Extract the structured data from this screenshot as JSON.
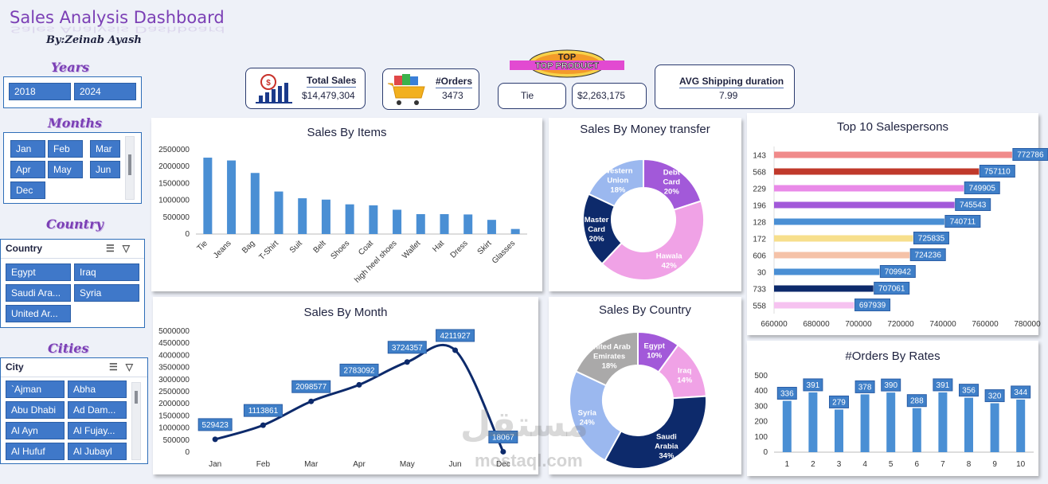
{
  "header": {
    "title": "Sales Analysis Dashboard",
    "author": "By:Zeinab Ayash"
  },
  "filters": {
    "years": {
      "heading": "Years",
      "items": [
        "2018",
        "2024"
      ]
    },
    "months": {
      "heading": "Months",
      "items": [
        "Jan",
        "Feb",
        "Mar",
        "Apr",
        "May",
        "Jun",
        "Dec"
      ]
    },
    "country": {
      "heading": "Country",
      "slicer_title": "Country",
      "items": [
        "Egypt",
        "Iraq",
        "Saudi Ara...",
        "Syria",
        "United Ar..."
      ]
    },
    "cities": {
      "heading": "Cities",
      "slicer_title": "City",
      "items": [
        "`Ajman",
        "Abha",
        "Abu Dhabi",
        "Ad Dam...",
        "Al Ayn",
        "Al Fujay...",
        "Al Hufuf",
        "Al Jubayl"
      ]
    }
  },
  "kpis": {
    "total_sales": {
      "label": "Total Sales",
      "value": "$14,479,304"
    },
    "orders": {
      "label": "#Orders",
      "value": "3473"
    },
    "top_product": {
      "badge": "TOP PRODUCT",
      "name": "Tie",
      "value": "$2,263,175"
    },
    "shipping": {
      "label": "AVG Shipping duration",
      "value": "7.99"
    }
  },
  "panels": {
    "items": "Sales By Items",
    "money": "Sales By Money transfer",
    "salespersons": "Top 10 Salespersons",
    "month": "Sales By Month",
    "country": "Sales By Country",
    "rates": "#Orders By Rates"
  },
  "watermark": {
    "text": "مستقل",
    "sub": "mostaql.com"
  },
  "colors": {
    "bar": "#4a8fd4",
    "navy": "#0d2a6b",
    "accent": "#7b3fb5"
  },
  "chart_data": [
    {
      "id": "items",
      "type": "bar",
      "title": "Sales By Items",
      "categories": [
        "Tie",
        "Jeans",
        "Bag",
        "T-Shirt",
        "Suit",
        "Belt",
        "Shoes",
        "Coat",
        "high heel shoes",
        "Wallet",
        "Hat",
        "Dress",
        "Skirt",
        "Glasses"
      ],
      "values": [
        2263175,
        2180000,
        1810000,
        1260000,
        1060000,
        1020000,
        880000,
        850000,
        720000,
        590000,
        590000,
        580000,
        420000,
        150000
      ],
      "ylim": [
        0,
        2500000
      ],
      "yticks": [
        0,
        500000,
        1000000,
        1500000,
        2000000,
        2500000
      ]
    },
    {
      "id": "money",
      "type": "pie",
      "title": "Sales By Money transfer",
      "labels": [
        "Debt Card",
        "Hawala",
        "Master Card",
        "Western Union"
      ],
      "values": [
        20,
        42,
        20,
        18
      ],
      "colors": [
        "#a259d9",
        "#f0a2e6",
        "#0d2a6b",
        "#9bb8ef"
      ]
    },
    {
      "id": "salespersons",
      "type": "bar",
      "orientation": "horizontal",
      "title": "Top 10 Salespersons",
      "categories": [
        "143",
        "568",
        "229",
        "196",
        "128",
        "172",
        "606",
        "30",
        "733",
        "558"
      ],
      "values": [
        772786,
        757110,
        749905,
        745543,
        740711,
        725835,
        724236,
        709942,
        707061,
        697939
      ],
      "colors": [
        "#f08a8a",
        "#c0392b",
        "#e98ae8",
        "#a259d9",
        "#4a8fd4",
        "#f7df8c",
        "#f5c2a8",
        "#4a8fd4",
        "#0d2a6b",
        "#f6c2f0"
      ],
      "xlim": [
        660000,
        780000
      ],
      "xticks": [
        660000,
        680000,
        700000,
        720000,
        740000,
        760000,
        780000
      ]
    },
    {
      "id": "month",
      "type": "line",
      "title": "Sales By Month",
      "categories": [
        "Jan",
        "Feb",
        "Mar",
        "Apr",
        "May",
        "Jun",
        "Dec"
      ],
      "values": [
        529423,
        1113861,
        2098577,
        2783092,
        3724357,
        4211927,
        18067
      ],
      "ylim": [
        0,
        5000000
      ],
      "yticks": [
        0,
        500000,
        1000000,
        1500000,
        2000000,
        2500000,
        3000000,
        3500000,
        4000000,
        4500000,
        5000000
      ]
    },
    {
      "id": "country",
      "type": "pie",
      "title": "Sales By Country",
      "labels": [
        "Egypt",
        "Iraq",
        "Saudi Arabia",
        "Syria",
        "United Arab Emirates"
      ],
      "values": [
        10,
        14,
        34,
        24,
        18
      ],
      "colors": [
        "#a259d9",
        "#f0a2e6",
        "#0d2a6b",
        "#9bb8ef",
        "#aaa9a9"
      ]
    },
    {
      "id": "rates",
      "type": "bar",
      "title": "#Orders By Rates",
      "categories": [
        "1",
        "2",
        "3",
        "4",
        "5",
        "6",
        "7",
        "8",
        "9",
        "10"
      ],
      "values": [
        336,
        391,
        279,
        378,
        390,
        288,
        391,
        356,
        320,
        344
      ],
      "ylim": [
        0,
        500
      ],
      "yticks": [
        0,
        100,
        200,
        300,
        400,
        500
      ]
    }
  ]
}
